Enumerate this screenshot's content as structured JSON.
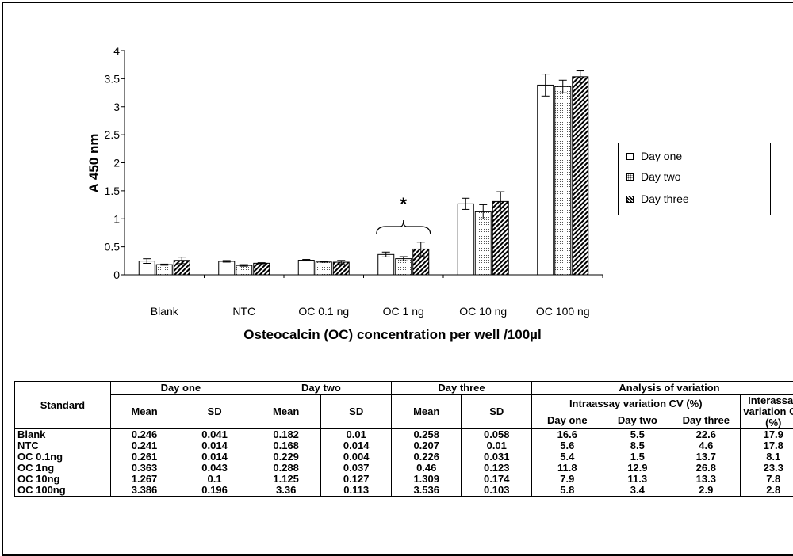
{
  "chart_data": {
    "type": "bar",
    "categories": [
      "Blank",
      "NTC",
      "OC 0.1 ng",
      "OC 1 ng",
      "OC 10 ng",
      "OC 100 ng"
    ],
    "series": [
      {
        "name": "Day one",
        "pattern": "white",
        "values": [
          0.246,
          0.241,
          0.261,
          0.363,
          1.267,
          3.386
        ],
        "errors": [
          0.041,
          0.014,
          0.014,
          0.043,
          0.1,
          0.196
        ]
      },
      {
        "name": "Day two",
        "pattern": "dotted",
        "values": [
          0.182,
          0.168,
          0.229,
          0.288,
          1.125,
          3.36
        ],
        "errors": [
          0.01,
          0.014,
          0.004,
          0.037,
          0.127,
          0.113
        ]
      },
      {
        "name": "Day three",
        "pattern": "hatched",
        "values": [
          0.258,
          0.207,
          0.226,
          0.46,
          1.309,
          3.536
        ],
        "errors": [
          0.058,
          0.01,
          0.031,
          0.123,
          0.174,
          0.103
        ]
      }
    ],
    "ylim": [
      0,
      4
    ],
    "yticks": [
      "0",
      "0.5",
      "1",
      "1.5",
      "2",
      "2.5",
      "3",
      "3.5",
      "4"
    ],
    "ylabel": "A 450 nm",
    "xlabel": "Osteocalcin (OC) concentration per well /100µl",
    "annotation": {
      "text": "*",
      "category": "OC 1 ng"
    },
    "legend_position": "right",
    "grid": false
  },
  "table": {
    "standard_header": "Standard",
    "day_headers": [
      "Day one",
      "Day two",
      "Day three"
    ],
    "analysis_header": "Analysis of variation",
    "mean_label": "Mean",
    "sd_label": "SD",
    "intra_header": "Intraassay variation CV (%)",
    "inter_header": "Interassay variation CV (%)",
    "intra_days": [
      "Day one",
      "Day two",
      "Day three"
    ],
    "rows": [
      {
        "standard": "Blank",
        "cells": [
          "0.246",
          "0.041",
          "0.182",
          "0.01",
          "0.258",
          "0.058",
          "16.6",
          "5.5",
          "22.6",
          "17.9"
        ]
      },
      {
        "standard": "NTC",
        "cells": [
          "0.241",
          "0.014",
          "0.168",
          "0.014",
          "0.207",
          "0.01",
          "5.6",
          "8.5",
          "4.6",
          "17.8"
        ]
      },
      {
        "standard": "OC 0.1ng",
        "cells": [
          "0.261",
          "0.014",
          "0.229",
          "0.004",
          "0.226",
          "0.031",
          "5.4",
          "1.5",
          "13.7",
          "8.1"
        ]
      },
      {
        "standard": "OC 1ng",
        "cells": [
          "0.363",
          "0.043",
          "0.288",
          "0.037",
          "0.46",
          "0.123",
          "11.8",
          "12.9",
          "26.8",
          "23.3"
        ]
      },
      {
        "standard": "OC 10ng",
        "cells": [
          "1.267",
          "0.1",
          "1.125",
          "0.127",
          "1.309",
          "0.174",
          "7.9",
          "11.3",
          "13.3",
          "7.8"
        ]
      },
      {
        "standard": "OC 100ng",
        "cells": [
          "3.386",
          "0.196",
          "3.36",
          "0.113",
          "3.536",
          "0.103",
          "5.8",
          "3.4",
          "2.9",
          "2.8"
        ]
      }
    ]
  }
}
